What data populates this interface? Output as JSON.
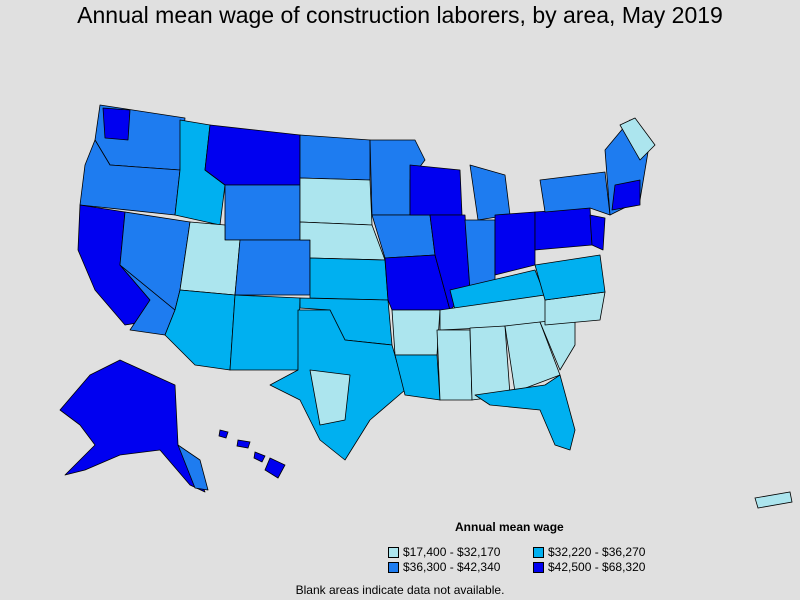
{
  "title": "Annual mean wage of construction laborers, by area, May 2019",
  "legend": {
    "title": "Annual mean wage",
    "items": [
      {
        "label": "$17,400 - $32,170",
        "color": "#ace5ee"
      },
      {
        "label": "$32,220 - $36,270",
        "color": "#00b0f0"
      },
      {
        "label": "$36,300 - $42,340",
        "color": "#1e7cf0"
      },
      {
        "label": "$42,500 - $68,320",
        "color": "#0000f0"
      }
    ]
  },
  "footnote": "Blank areas indicate data not available.",
  "colors": {
    "background": "#e0e0e0",
    "border": "#000000"
  }
}
